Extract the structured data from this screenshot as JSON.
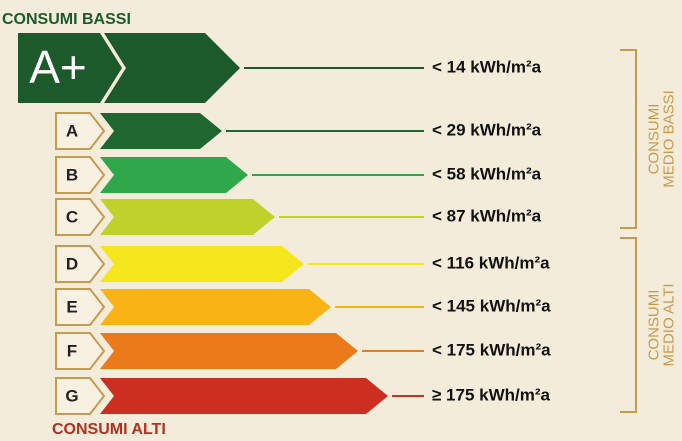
{
  "top_label": "CONSUMI BASSI",
  "bottom_label": "CONSUMI ALTI",
  "classes": [
    {
      "letter": "A+",
      "label": "< 14 kWh/m²a",
      "color": "#1d5a2b"
    },
    {
      "letter": "A",
      "label": "< 29 kWh/m²a",
      "color": "#1f6630"
    },
    {
      "letter": "B",
      "label": "< 58 kWh/m²a",
      "color": "#2ea84a"
    },
    {
      "letter": "C",
      "label": "< 87 kWh/m²a",
      "color": "#bfd22b"
    },
    {
      "letter": "D",
      "label": "< 116 kWh/m²a",
      "color": "#f5e61e"
    },
    {
      "letter": "E",
      "label": "< 145 kWh/m²a",
      "color": "#f9b315"
    },
    {
      "letter": "F",
      "label": "< 175 kWh/m²a",
      "color": "#ea7a1a"
    },
    {
      "letter": "G",
      "label": "≥ 175 kWh/m²a",
      "color": "#cc2f20"
    }
  ],
  "groups": [
    {
      "lines": [
        "CONSUMI",
        "MEDIO BASSI"
      ]
    },
    {
      "lines": [
        "CONSUMI",
        "MEDIO ALTI"
      ]
    }
  ]
}
